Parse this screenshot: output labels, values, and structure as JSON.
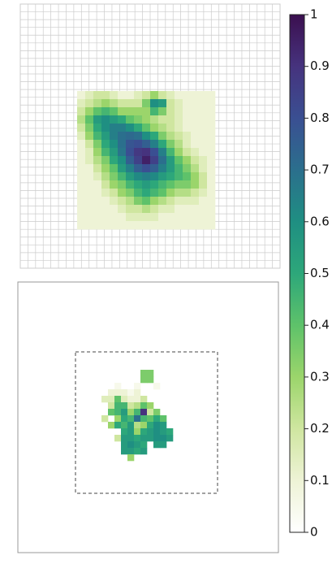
{
  "chart_data": {
    "type": "heatmap",
    "colormap": [
      "#ffffff",
      "#eef3d6",
      "#cfe6a0",
      "#9bd56b",
      "#5ec26a",
      "#2da77a",
      "#1f8f82",
      "#2b6f8d",
      "#3a4f92",
      "#46337e",
      "#3b0f4f"
    ],
    "images": [
      {
        "grid": true,
        "values": [
          [
            0.1,
            0.15,
            0.2,
            0.2,
            0.15,
            0.1,
            0.1,
            0.15,
            0.2,
            0.3,
            0.2,
            0.15,
            0.1,
            0.1,
            0.1,
            0.1,
            0.1
          ],
          [
            0.15,
            0.2,
            0.25,
            0.3,
            0.25,
            0.2,
            0.2,
            0.2,
            0.35,
            0.6,
            0.55,
            0.2,
            0.15,
            0.1,
            0.1,
            0.1,
            0.1
          ],
          [
            0.2,
            0.3,
            0.4,
            0.45,
            0.4,
            0.3,
            0.3,
            0.3,
            0.3,
            0.45,
            0.35,
            0.2,
            0.15,
            0.1,
            0.1,
            0.1,
            0.1
          ],
          [
            0.25,
            0.4,
            0.55,
            0.6,
            0.55,
            0.5,
            0.4,
            0.35,
            0.3,
            0.25,
            0.2,
            0.2,
            0.15,
            0.1,
            0.1,
            0.1,
            0.1
          ],
          [
            0.2,
            0.35,
            0.5,
            0.6,
            0.65,
            0.65,
            0.6,
            0.5,
            0.4,
            0.3,
            0.25,
            0.2,
            0.15,
            0.1,
            0.1,
            0.1,
            0.1
          ],
          [
            0.15,
            0.3,
            0.45,
            0.55,
            0.65,
            0.7,
            0.72,
            0.7,
            0.6,
            0.5,
            0.35,
            0.25,
            0.2,
            0.15,
            0.1,
            0.1,
            0.1
          ],
          [
            0.1,
            0.2,
            0.35,
            0.5,
            0.6,
            0.7,
            0.78,
            0.8,
            0.75,
            0.65,
            0.5,
            0.35,
            0.25,
            0.15,
            0.1,
            0.1,
            0.1
          ],
          [
            0.1,
            0.15,
            0.3,
            0.45,
            0.55,
            0.68,
            0.8,
            0.88,
            0.9,
            0.8,
            0.65,
            0.45,
            0.3,
            0.2,
            0.15,
            0.1,
            0.1
          ],
          [
            0.1,
            0.15,
            0.25,
            0.35,
            0.5,
            0.6,
            0.75,
            0.85,
            0.95,
            0.85,
            0.7,
            0.55,
            0.4,
            0.3,
            0.2,
            0.15,
            0.1
          ],
          [
            0.1,
            0.1,
            0.2,
            0.3,
            0.4,
            0.55,
            0.65,
            0.75,
            0.8,
            0.75,
            0.65,
            0.55,
            0.45,
            0.35,
            0.25,
            0.15,
            0.1
          ],
          [
            0.1,
            0.1,
            0.15,
            0.25,
            0.35,
            0.45,
            0.55,
            0.62,
            0.65,
            0.62,
            0.55,
            0.5,
            0.45,
            0.4,
            0.3,
            0.2,
            0.1
          ],
          [
            0.1,
            0.1,
            0.1,
            0.2,
            0.3,
            0.35,
            0.45,
            0.5,
            0.55,
            0.5,
            0.45,
            0.4,
            0.35,
            0.35,
            0.3,
            0.2,
            0.1
          ],
          [
            0.1,
            0.1,
            0.1,
            0.15,
            0.2,
            0.3,
            0.35,
            0.45,
            0.5,
            0.45,
            0.4,
            0.3,
            0.25,
            0.25,
            0.2,
            0.15,
            0.1
          ],
          [
            0.1,
            0.1,
            0.1,
            0.1,
            0.15,
            0.2,
            0.25,
            0.35,
            0.4,
            0.3,
            0.25,
            0.2,
            0.15,
            0.15,
            0.15,
            0.1,
            0.1
          ],
          [
            0.1,
            0.1,
            0.1,
            0.1,
            0.1,
            0.15,
            0.2,
            0.2,
            0.25,
            0.2,
            0.15,
            0.15,
            0.1,
            0.1,
            0.1,
            0.1,
            0.1
          ],
          [
            0.1,
            0.1,
            0.1,
            0.1,
            0.1,
            0.1,
            0.15,
            0.15,
            0.15,
            0.15,
            0.1,
            0.1,
            0.1,
            0.1,
            0.1,
            0.1,
            0.1
          ],
          [
            0.1,
            0.1,
            0.1,
            0.1,
            0.1,
            0.1,
            0.1,
            0.1,
            0.1,
            0.1,
            0.1,
            0.1,
            0.1,
            0.1,
            0.1,
            0.1,
            0.1
          ]
        ]
      },
      {
        "grid": false,
        "values": [
          [
            null,
            null,
            null,
            null,
            null,
            null,
            0.35,
            0.35,
            null,
            null,
            null,
            null
          ],
          [
            null,
            null,
            null,
            null,
            null,
            null,
            0.35,
            0.35,
            null,
            null,
            null,
            null
          ],
          [
            null,
            null,
            0.05,
            null,
            null,
            0.05,
            null,
            null,
            0.05,
            null,
            null,
            null
          ],
          [
            null,
            0.1,
            0.1,
            0.1,
            0.05,
            0.1,
            null,
            null,
            null,
            null,
            null,
            null
          ],
          [
            0.15,
            0.15,
            0.4,
            0.15,
            0.1,
            0.1,
            0.2,
            null,
            null,
            null,
            null,
            null
          ],
          [
            null,
            0.2,
            0.45,
            0.45,
            0.2,
            0.25,
            0.4,
            0.3,
            null,
            null,
            null,
            null
          ],
          [
            null,
            0.4,
            0.45,
            0.55,
            0.3,
            0.45,
            0.9,
            0.2,
            0.35,
            null,
            null,
            null
          ],
          [
            0.2,
            null,
            0.3,
            0.5,
            0.45,
            0.7,
            0.45,
            0.4,
            0.5,
            0.4,
            null,
            null
          ],
          [
            null,
            0.3,
            0.5,
            0.45,
            0.55,
            0.25,
            0.3,
            0.5,
            0.6,
            0.55,
            null,
            null
          ],
          [
            null,
            null,
            null,
            0.5,
            0.55,
            0.3,
            0.5,
            0.55,
            0.6,
            0.55,
            0.5,
            null
          ],
          [
            null,
            null,
            0.2,
            0.55,
            0.55,
            0.5,
            0.55,
            0.55,
            0.6,
            0.6,
            0.55,
            null
          ],
          [
            null,
            null,
            null,
            0.55,
            0.6,
            0.55,
            0.5,
            null,
            0.55,
            0.55,
            null,
            null
          ],
          [
            null,
            null,
            null,
            0.55,
            0.55,
            0.5,
            0.55,
            null,
            null,
            null,
            null,
            null
          ],
          [
            null,
            null,
            null,
            null,
            0.3,
            null,
            null,
            null,
            null,
            null,
            null,
            null
          ]
        ]
      }
    ],
    "colorbar": {
      "clim": [
        0,
        1
      ],
      "ticks": [
        0,
        0.1,
        0.2,
        0.3,
        0.4,
        0.5,
        0.6,
        0.7,
        0.8,
        0.9,
        1
      ]
    }
  }
}
